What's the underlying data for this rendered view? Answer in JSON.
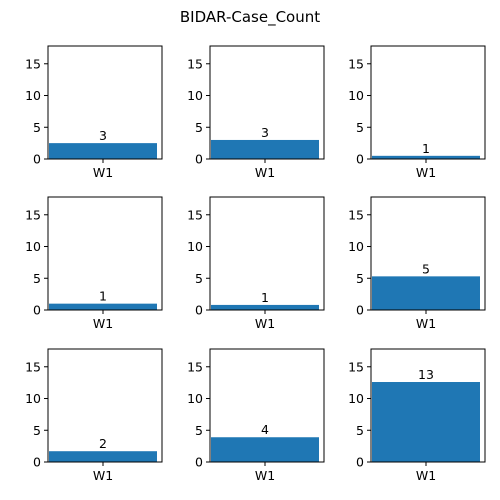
{
  "figure": {
    "title": "BIDAR-Case_Count"
  },
  "chart_data": {
    "type": "bar",
    "suptitle": "BIDAR-Case_Count",
    "layout": "3x3 grid of subplots",
    "bar_color": "#1f77b4",
    "ylim": [
      0,
      17.8
    ],
    "yticks": [
      0,
      5,
      10,
      15
    ],
    "grid": false,
    "subplots": [
      {
        "categories": [
          "W1"
        ],
        "values": [
          2.5
        ],
        "data_label": "3"
      },
      {
        "categories": [
          "W1"
        ],
        "values": [
          3.0
        ],
        "data_label": "3"
      },
      {
        "categories": [
          "W1"
        ],
        "values": [
          0.5
        ],
        "data_label": "1"
      },
      {
        "categories": [
          "W1"
        ],
        "values": [
          1.0
        ],
        "data_label": "1"
      },
      {
        "categories": [
          "W1"
        ],
        "values": [
          0.8
        ],
        "data_label": "1"
      },
      {
        "categories": [
          "W1"
        ],
        "values": [
          5.3
        ],
        "data_label": "5"
      },
      {
        "categories": [
          "W1"
        ],
        "values": [
          1.7
        ],
        "data_label": "2"
      },
      {
        "categories": [
          "W1"
        ],
        "values": [
          3.9
        ],
        "data_label": "4"
      },
      {
        "categories": [
          "W1"
        ],
        "values": [
          12.6
        ],
        "data_label": "13"
      }
    ]
  }
}
